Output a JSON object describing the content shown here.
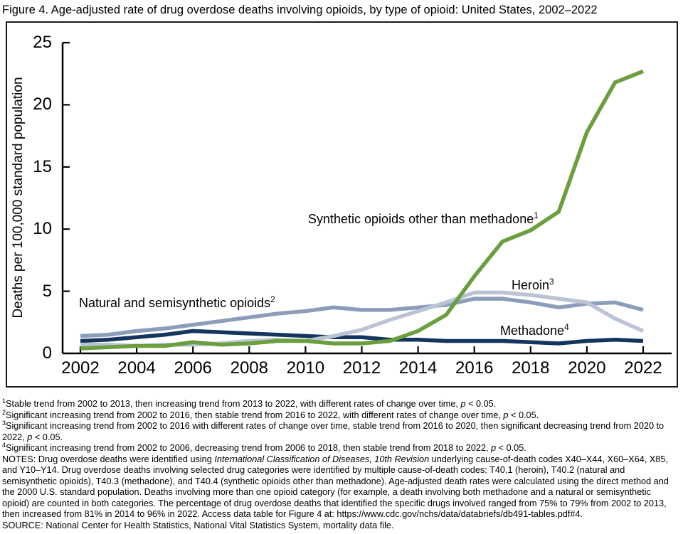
{
  "figure": {
    "title": "Figure 4. Age-adjusted rate of drug overdose deaths involving opioids, by type of opioid: United States, 2002–2022"
  },
  "chart_data": {
    "type": "line",
    "title": "Figure 4. Age-adjusted rate of drug overdose deaths involving opioids, by type of opioid: United States, 2002–2022",
    "xlabel": "",
    "ylabel": "Deaths per 100,000 standard population",
    "ylim": [
      0,
      25
    ],
    "yticks": [
      0,
      5,
      10,
      15,
      20,
      25
    ],
    "xticks": [
      2002,
      2004,
      2006,
      2008,
      2010,
      2012,
      2014,
      2016,
      2018,
      2020,
      2022
    ],
    "grid": false,
    "legend_position": "inline labels beside lines",
    "x": [
      2002,
      2003,
      2004,
      2005,
      2006,
      2007,
      2008,
      2009,
      2010,
      2011,
      2012,
      2013,
      2014,
      2015,
      2016,
      2017,
      2018,
      2019,
      2020,
      2021,
      2022
    ],
    "series": [
      {
        "name": "Natural and semisynthetic opioids",
        "footnote_sup": "2",
        "color": "#8c9dbb",
        "values": [
          1.4,
          1.5,
          1.8,
          2.0,
          2.3,
          2.6,
          2.9,
          3.2,
          3.4,
          3.7,
          3.5,
          3.5,
          3.7,
          3.9,
          4.4,
          4.4,
          4.1,
          3.7,
          4.0,
          4.1,
          3.5
        ]
      },
      {
        "name": "Methadone",
        "footnote_sup": "4",
        "color": "#14355e",
        "values": [
          1.0,
          1.1,
          1.3,
          1.5,
          1.8,
          1.7,
          1.6,
          1.5,
          1.4,
          1.3,
          1.3,
          1.1,
          1.1,
          1.0,
          1.0,
          1.0,
          0.9,
          0.8,
          1.0,
          1.1,
          1.0
        ]
      },
      {
        "name": "Heroin",
        "footnote_sup": "3",
        "color": "#bac4d5",
        "values": [
          0.7,
          0.7,
          0.6,
          0.7,
          0.7,
          0.8,
          1.0,
          1.1,
          1.0,
          1.4,
          1.9,
          2.7,
          3.4,
          4.1,
          4.9,
          4.9,
          4.7,
          4.4,
          4.1,
          2.8,
          1.8
        ]
      },
      {
        "name": "Synthetic opioids other than methadone",
        "footnote_sup": "1",
        "color": "#6b9e3e",
        "values": [
          0.4,
          0.5,
          0.6,
          0.6,
          0.9,
          0.7,
          0.8,
          1.0,
          1.0,
          0.8,
          0.8,
          1.0,
          1.8,
          3.1,
          6.2,
          9.0,
          9.9,
          11.4,
          17.8,
          21.8,
          22.7
        ]
      }
    ],
    "axis_color": "#000000"
  },
  "footnotes": [
    {
      "sup": "1",
      "segments": [
        {
          "t": "Stable trend from 2002 to 2013, then increasing trend from 2013 to 2022, with different rates of change over time, "
        },
        {
          "t": "p",
          "i": true
        },
        {
          "t": " < 0.05."
        }
      ]
    },
    {
      "sup": "2",
      "segments": [
        {
          "t": "Significant increasing trend from 2002 to 2016, then stable trend from 2016 to 2022, with different rates of change over time, "
        },
        {
          "t": "p",
          "i": true
        },
        {
          "t": " < 0.05."
        }
      ]
    },
    {
      "sup": "3",
      "segments": [
        {
          "t": "Significant increasing trend from 2002 to 2016 with different rates of change over time, stable trend from 2016 to 2020, then significant decreasing trend from 2020 to 2022, "
        },
        {
          "t": "p",
          "i": true
        },
        {
          "t": " < 0.05."
        }
      ]
    },
    {
      "sup": "4",
      "segments": [
        {
          "t": "Significant increasing trend from 2002 to 2006, decreasing trend from 2006 to 2018, then stable trend from 2018 to 2022, "
        },
        {
          "t": "p",
          "i": true
        },
        {
          "t": " < 0.05."
        }
      ]
    }
  ],
  "notes": {
    "segments": [
      {
        "t": "NOTES: Drug overdose deaths were identified using "
      },
      {
        "t": "International Classification of Diseases, 10th Revision",
        "i": true
      },
      {
        "t": " underlying cause-of-death codes X40–X44, X60–X64, X85, and Y10–Y14. Drug overdose deaths involving selected drug categories were identified by multiple cause-of-death codes: T40.1 (heroin), T40.2 (natural and semisynthetic opioids), T40.3 (methadone), and T40.4 (synthetic opioids other than methadone). Age-adjusted death rates were calculated using the direct method and the 2000 U.S. standard population. Deaths involving more than one opioid category (for example, a death involving both methadone and a natural or semisynthetic opioid) are counted in both categories. The percentage of drug overdose deaths that identified the specific drugs involved ranged from 75% to 79% from 2002 to 2013, then increased from 81% in 2014 to 96% in 2022. Access data table for Figure 4 at: https://www.cdc.gov/nchs/data/databriefs/db491-tables.pdf#4."
      }
    ]
  },
  "source": "SOURCE: National Center for Health Statistics, National Vital Statistics System, mortality data file."
}
